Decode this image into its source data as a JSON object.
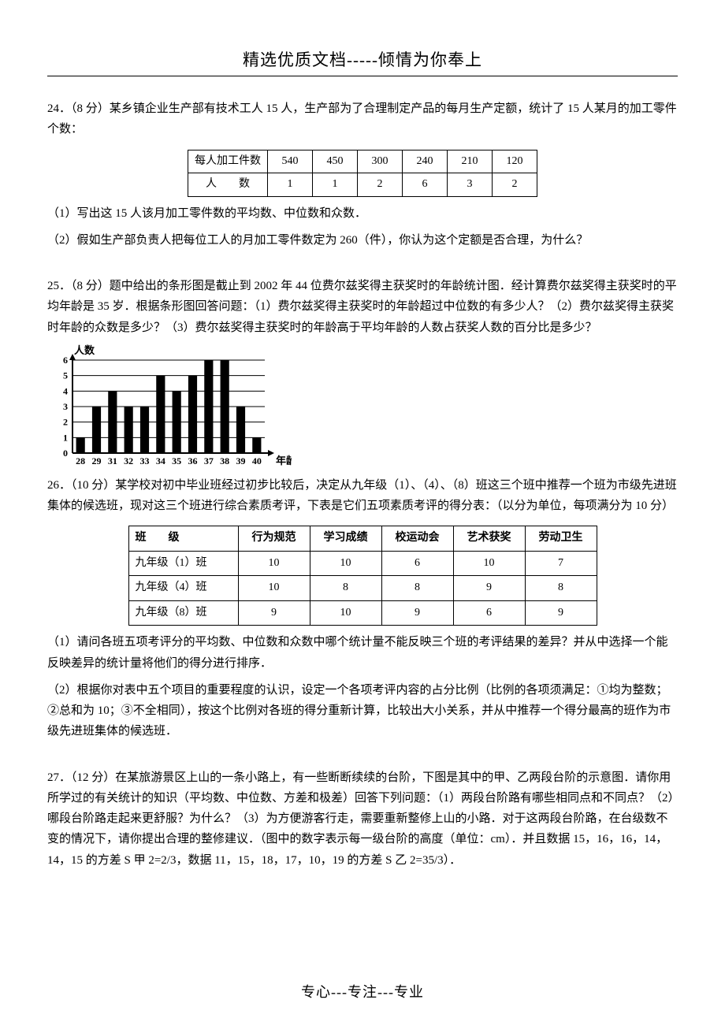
{
  "header": "精选优质文档-----倾情为你奉上",
  "footer": "专心---专注---专业",
  "q24": {
    "title": "24．（8 分）某乡镇企业生产部有技术工人 15 人，生产部为了合理制定产品的每月生产定额，统计了 15 人某月的加工零件个数：",
    "table": {
      "row1_label": "每人加工件数",
      "row2_label": "人　　数",
      "cols": [
        "540",
        "450",
        "300",
        "240",
        "210",
        "120"
      ],
      "counts": [
        "1",
        "1",
        "2",
        "6",
        "3",
        "2"
      ]
    },
    "sub1": "（1）写出这 15 人该月加工零件数的平均数、中位数和众数．",
    "sub2": "（2）假如生产部负责人把每位工人的月加工零件数定为 260（件），你认为这个定额是否合理，为什么？"
  },
  "q25": {
    "title": "25．（8 分）题中给出的条形图是截止到 2002 年 44 位费尔兹奖得主获奖时的年龄统计图．经计算费尔兹奖得主获奖时的平均年龄是 35 岁．根据条形图回答问题：（1）费尔兹奖得主获奖时的年龄超过中位数的有多少人？（2）费尔兹奖得主获奖时年龄的众数是多少？（3）费尔兹奖得主获奖时的年龄高于平均年龄的人数占获奖人数的百分比是多少？",
    "chart": {
      "type": "bar",
      "y_label": "人数",
      "x_label": "年龄",
      "categories": [
        "28",
        "29",
        "31",
        "32",
        "33",
        "34",
        "35",
        "36",
        "37",
        "38",
        "39",
        "40"
      ],
      "values": [
        1,
        3,
        4,
        3,
        3,
        5,
        4,
        5,
        6,
        6,
        3,
        1
      ],
      "ylim": [
        0,
        6
      ],
      "ytick_step": 1,
      "bar_color": "#000000",
      "background_color": "#ffffff",
      "axis_color": "#000000",
      "grid_color": "#000000",
      "label_fontsize": 13,
      "tick_fontsize": 12,
      "bar_width": 0.55
    }
  },
  "q26": {
    "title": "26．（10 分）某学校对初中毕业班经过初步比较后，决定从九年级（1）、（4）、（8）班这三个班中推荐一个班为市级先进班集体的候选班，现对这三个班进行综合素质考评，下表是它们五项素质考评的得分表：（以分为单位，每项满分为 10 分）",
    "table": {
      "headers": [
        "班　　级",
        "行为规范",
        "学习成绩",
        "校运动会",
        "艺术获奖",
        "劳动卫生"
      ],
      "rows": [
        [
          "九年级（1）班",
          "10",
          "10",
          "6",
          "10",
          "7"
        ],
        [
          "九年级（4）班",
          "10",
          "8",
          "8",
          "9",
          "8"
        ],
        [
          "九年级（8）班",
          "9",
          "10",
          "9",
          "6",
          "9"
        ]
      ]
    },
    "sub1": "（1）请问各班五项考评分的平均数、中位数和众数中哪个统计量不能反映三个班的考评结果的差异？并从中选择一个能反映差异的统计量将他们的得分进行排序．",
    "sub2": "（2）根据你对表中五个项目的重要程度的认识，设定一个各项考评内容的占分比例（比例的各项须满足：①均为整数；②总和为 10；③不全相同），按这个比例对各班的得分重新计算，比较出大小关系，并从中推荐一个得分最高的班作为市级先进班集体的候选班．"
  },
  "q27": {
    "title": "27．（12 分）在某旅游景区上山的一条小路上，有一些断断续续的台阶，下图是其中的甲、乙两段台阶的示意图．请你用所学过的有关统计的知识（平均数、中位数、方差和极差）回答下列问题：（1）两段台阶路有哪些相同点和不同点？（2）哪段台阶路走起来更舒服？为什么？（3）为方便游客行走，需要重新整修上山的小路．对于这两段台阶路，在台级数不变的情况下，请你提出合理的整修建议．（图中的数字表示每一级台阶的高度（单位：cm）．并且数据 15，16，16，14，14，15 的方差 S 甲 2=2/3，数据 11，15，18，17，10，19 的方差 S 乙 2=35/3）．"
  }
}
